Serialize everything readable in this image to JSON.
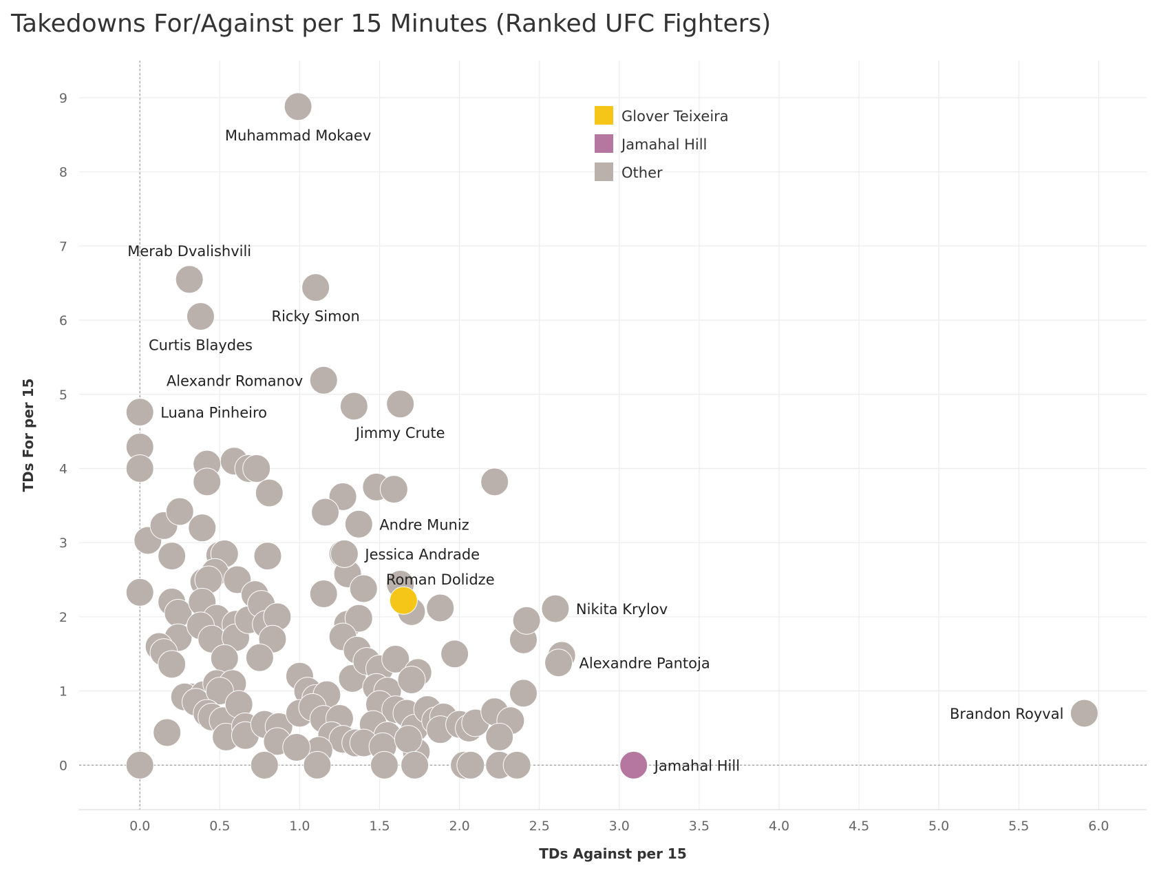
{
  "chart_data": {
    "type": "scatter",
    "title": "Takedowns For/Against per 15 Minutes (Ranked UFC Fighters)",
    "xlabel": "TDs Against per 15",
    "ylabel": "TDs For per 15",
    "xlim": [
      -0.38,
      6.3
    ],
    "ylim": [
      -0.6,
      9.5
    ],
    "x_ticks": [
      "0.0",
      "0.5",
      "1.0",
      "1.5",
      "2.0",
      "2.5",
      "3.0",
      "3.5",
      "4.0",
      "4.5",
      "5.0",
      "5.5",
      "6.0"
    ],
    "y_ticks": [
      "0",
      "1",
      "2",
      "3",
      "4",
      "5",
      "6",
      "7",
      "8",
      "9"
    ],
    "grid": true,
    "legend_position": "top-right",
    "colors": {
      "Glover Teixeira": "#f5c518",
      "Jamahal Hill": "#b5779f",
      "Other": "#bab0ac"
    },
    "legend": [
      {
        "name": "Glover Teixeira",
        "color": "#f5c518"
      },
      {
        "name": "Jamahal Hill",
        "color": "#b5779f"
      },
      {
        "name": "Other",
        "color": "#bab0ac"
      }
    ],
    "labeled_points": [
      {
        "name": "Muhammad Mokaev",
        "x": 0.99,
        "y": 8.88,
        "group": "Other",
        "anchor": "below"
      },
      {
        "name": "Merab Dvalishvili",
        "x": 0.31,
        "y": 6.55,
        "group": "Other",
        "anchor": "above"
      },
      {
        "name": "Ricky Simon",
        "x": 1.1,
        "y": 6.44,
        "group": "Other",
        "anchor": "below"
      },
      {
        "name": "Curtis Blaydes",
        "x": 0.38,
        "y": 6.05,
        "group": "Other",
        "anchor": "below"
      },
      {
        "name": "Alexandr Romanov",
        "x": 1.15,
        "y": 5.19,
        "group": "Other",
        "anchor": "left"
      },
      {
        "name": "Luana Pinheiro",
        "x": 0.0,
        "y": 4.76,
        "group": "Other",
        "anchor": "right"
      },
      {
        "name": "Jimmy Crute",
        "x": 1.63,
        "y": 4.87,
        "group": "Other",
        "anchor": "below"
      },
      {
        "name": "Andre Muniz",
        "x": 1.37,
        "y": 3.25,
        "group": "Other",
        "anchor": "right"
      },
      {
        "name": "Jessica Andrade",
        "x": 1.28,
        "y": 2.85,
        "group": "Other",
        "anchor": "right"
      },
      {
        "name": "Roman Dolidze",
        "x": 1.88,
        "y": 2.12,
        "group": "Other",
        "anchor": "above"
      },
      {
        "name": "Nikita Krylov",
        "x": 2.6,
        "y": 2.11,
        "group": "Other",
        "anchor": "right"
      },
      {
        "name": "Alexandre Pantoja",
        "x": 2.62,
        "y": 1.38,
        "group": "Other",
        "anchor": "right"
      },
      {
        "name": "Brandon Royval",
        "x": 5.91,
        "y": 0.7,
        "group": "Other",
        "anchor": "left"
      },
      {
        "name": "Jamahal Hill",
        "x": 3.09,
        "y": 0.0,
        "group": "Jamahal Hill",
        "anchor": "right"
      },
      {
        "name": "Glover Teixeira",
        "x": 1.65,
        "y": 2.22,
        "group": "Glover Teixeira",
        "anchor": "none"
      }
    ],
    "other_points": [
      [
        0.0,
        4.29
      ],
      [
        0.0,
        4.0
      ],
      [
        0.0,
        2.33
      ],
      [
        0.0,
        0.0
      ],
      [
        0.05,
        3.03
      ],
      [
        0.15,
        3.23
      ],
      [
        0.25,
        3.42
      ],
      [
        0.2,
        2.82
      ],
      [
        0.2,
        2.2
      ],
      [
        0.24,
        2.05
      ],
      [
        0.24,
        1.72
      ],
      [
        0.12,
        1.6
      ],
      [
        0.15,
        1.52
      ],
      [
        0.2,
        1.36
      ],
      [
        0.17,
        0.44
      ],
      [
        0.42,
        4.06
      ],
      [
        0.42,
        3.82
      ],
      [
        0.39,
        3.2
      ],
      [
        0.59,
        4.1
      ],
      [
        0.68,
        4.0
      ],
      [
        0.73,
        4.0
      ],
      [
        0.81,
        3.67
      ],
      [
        0.5,
        2.83
      ],
      [
        0.53,
        2.85
      ],
      [
        0.47,
        2.6
      ],
      [
        0.4,
        2.47
      ],
      [
        0.43,
        2.5
      ],
      [
        0.61,
        2.5
      ],
      [
        0.39,
        2.2
      ],
      [
        0.48,
        1.98
      ],
      [
        0.38,
        1.88
      ],
      [
        0.45,
        1.7
      ],
      [
        0.6,
        1.9
      ],
      [
        0.6,
        1.72
      ],
      [
        0.68,
        1.96
      ],
      [
        0.72,
        2.3
      ],
      [
        0.76,
        2.17
      ],
      [
        0.79,
        1.9
      ],
      [
        0.86,
        2.0
      ],
      [
        0.83,
        1.7
      ],
      [
        0.8,
        2.82
      ],
      [
        0.53,
        1.44
      ],
      [
        0.75,
        1.45
      ],
      [
        0.32,
        0.92
      ],
      [
        0.28,
        0.92
      ],
      [
        0.4,
        0.95
      ],
      [
        0.35,
        0.85
      ],
      [
        0.48,
        1.1
      ],
      [
        0.58,
        1.1
      ],
      [
        0.5,
        1.0
      ],
      [
        0.42,
        0.7
      ],
      [
        0.45,
        0.65
      ],
      [
        0.52,
        0.6
      ],
      [
        0.62,
        0.82
      ],
      [
        0.54,
        0.38
      ],
      [
        0.66,
        0.52
      ],
      [
        0.66,
        0.4
      ],
      [
        0.78,
        0.55
      ],
      [
        0.87,
        0.52
      ],
      [
        0.86,
        0.32
      ],
      [
        0.78,
        0.0
      ],
      [
        1.0,
        1.2
      ],
      [
        1.05,
        1.0
      ],
      [
        1.1,
        0.9
      ],
      [
        1.17,
        0.95
      ],
      [
        1.0,
        0.7
      ],
      [
        1.08,
        0.78
      ],
      [
        1.15,
        0.62
      ],
      [
        1.25,
        0.63
      ],
      [
        1.2,
        0.4
      ],
      [
        1.27,
        0.35
      ],
      [
        1.35,
        0.3
      ],
      [
        1.12,
        0.2
      ],
      [
        0.98,
        0.24
      ],
      [
        1.11,
        0.0
      ],
      [
        1.27,
        2.85
      ],
      [
        1.3,
        2.58
      ],
      [
        1.4,
        2.38
      ],
      [
        1.15,
        2.31
      ],
      [
        1.3,
        1.9
      ],
      [
        1.37,
        1.98
      ],
      [
        1.27,
        1.73
      ],
      [
        1.36,
        1.55
      ],
      [
        1.33,
        1.17
      ],
      [
        1.42,
        1.4
      ],
      [
        1.5,
        1.3
      ],
      [
        1.48,
        1.05
      ],
      [
        1.55,
        1.0
      ],
      [
        1.6,
        1.43
      ],
      [
        1.5,
        0.82
      ],
      [
        1.6,
        0.75
      ],
      [
        1.46,
        0.55
      ],
      [
        1.55,
        0.4
      ],
      [
        1.4,
        0.3
      ],
      [
        1.52,
        0.25
      ],
      [
        1.53,
        0.0
      ],
      [
        1.63,
        2.44
      ],
      [
        1.7,
        2.07
      ],
      [
        1.74,
        1.25
      ],
      [
        1.7,
        1.15
      ],
      [
        1.67,
        0.7
      ],
      [
        1.72,
        0.5
      ],
      [
        1.8,
        0.75
      ],
      [
        1.73,
        0.18
      ],
      [
        1.68,
        0.35
      ],
      [
        1.85,
        0.6
      ],
      [
        1.9,
        0.65
      ],
      [
        1.88,
        0.48
      ],
      [
        2.0,
        0.55
      ],
      [
        2.06,
        0.5
      ],
      [
        2.1,
        0.57
      ],
      [
        2.22,
        0.72
      ],
      [
        2.32,
        0.6
      ],
      [
        2.25,
        0.38
      ],
      [
        2.03,
        0.0
      ],
      [
        2.07,
        0.0
      ],
      [
        2.25,
        0.0
      ],
      [
        2.36,
        0.0
      ],
      [
        1.72,
        0.0
      ],
      [
        1.97,
        1.5
      ],
      [
        2.4,
        0.97
      ],
      [
        2.4,
        1.69
      ],
      [
        2.42,
        1.95
      ],
      [
        2.64,
        1.48
      ],
      [
        1.27,
        3.62
      ],
      [
        1.16,
        3.41
      ],
      [
        1.48,
        3.75
      ],
      [
        1.59,
        3.72
      ],
      [
        2.22,
        3.82
      ],
      [
        1.34,
        4.84
      ]
    ]
  }
}
